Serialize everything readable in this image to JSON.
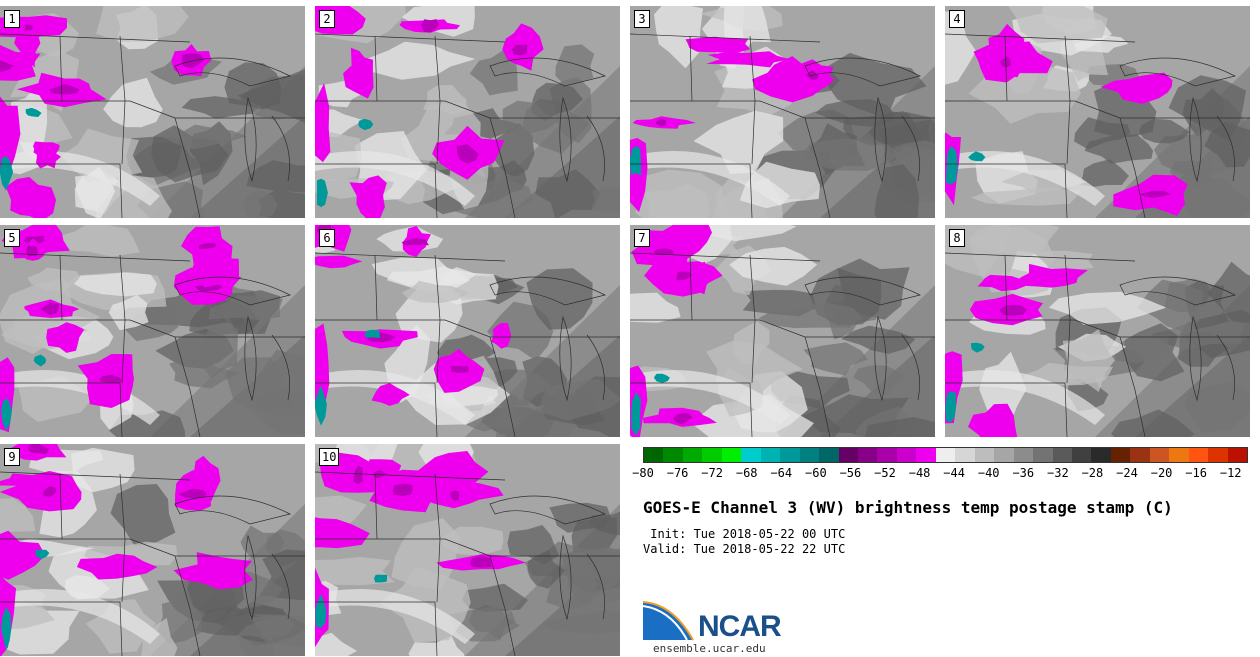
{
  "panels": [
    {
      "label": "1"
    },
    {
      "label": "2"
    },
    {
      "label": "3"
    },
    {
      "label": "4"
    },
    {
      "label": "5"
    },
    {
      "label": "6"
    },
    {
      "label": "7"
    },
    {
      "label": "8"
    },
    {
      "label": "9"
    },
    {
      "label": "10"
    }
  ],
  "colorbar": {
    "colors": [
      "#006600",
      "#008800",
      "#00aa00",
      "#00cc00",
      "#00ee00",
      "#00cccc",
      "#00b3b3",
      "#009999",
      "#008080",
      "#006666",
      "#660066",
      "#880088",
      "#aa00aa",
      "#cc00cc",
      "#ee00ee",
      "#eeeeee",
      "#d6d6d6",
      "#bdbdbd",
      "#a6a6a6",
      "#8c8c8c",
      "#737373",
      "#5a5a5a",
      "#404040",
      "#2a2a2a",
      "#662200",
      "#993311",
      "#cc5522",
      "#ee7711",
      "#ff5511",
      "#dd3300",
      "#bb1100"
    ],
    "ticks": [
      "−80",
      "−76",
      "−72",
      "−68",
      "−64",
      "−60",
      "−56",
      "−52",
      "−48",
      "−44",
      "−40",
      "−36",
      "−32",
      "−28",
      "−24",
      "−20",
      "−16",
      "−12"
    ],
    "palette_note_colors": {
      "cold_cloud": "#ff00ff",
      "dry": "#6e6e6e",
      "moist": "#bcbcbc",
      "deep_cold": "#009999"
    }
  },
  "title": "GOES-E Channel 3 (WV) brightness temp postage stamp (C)",
  "init_line": " Init: Tue 2018-05-22 00 UTC",
  "valid_line": "Valid: Tue 2018-05-22 22 UTC",
  "logo": {
    "wordmark": "NCAR",
    "url": "ensemble.ucar.edu"
  }
}
